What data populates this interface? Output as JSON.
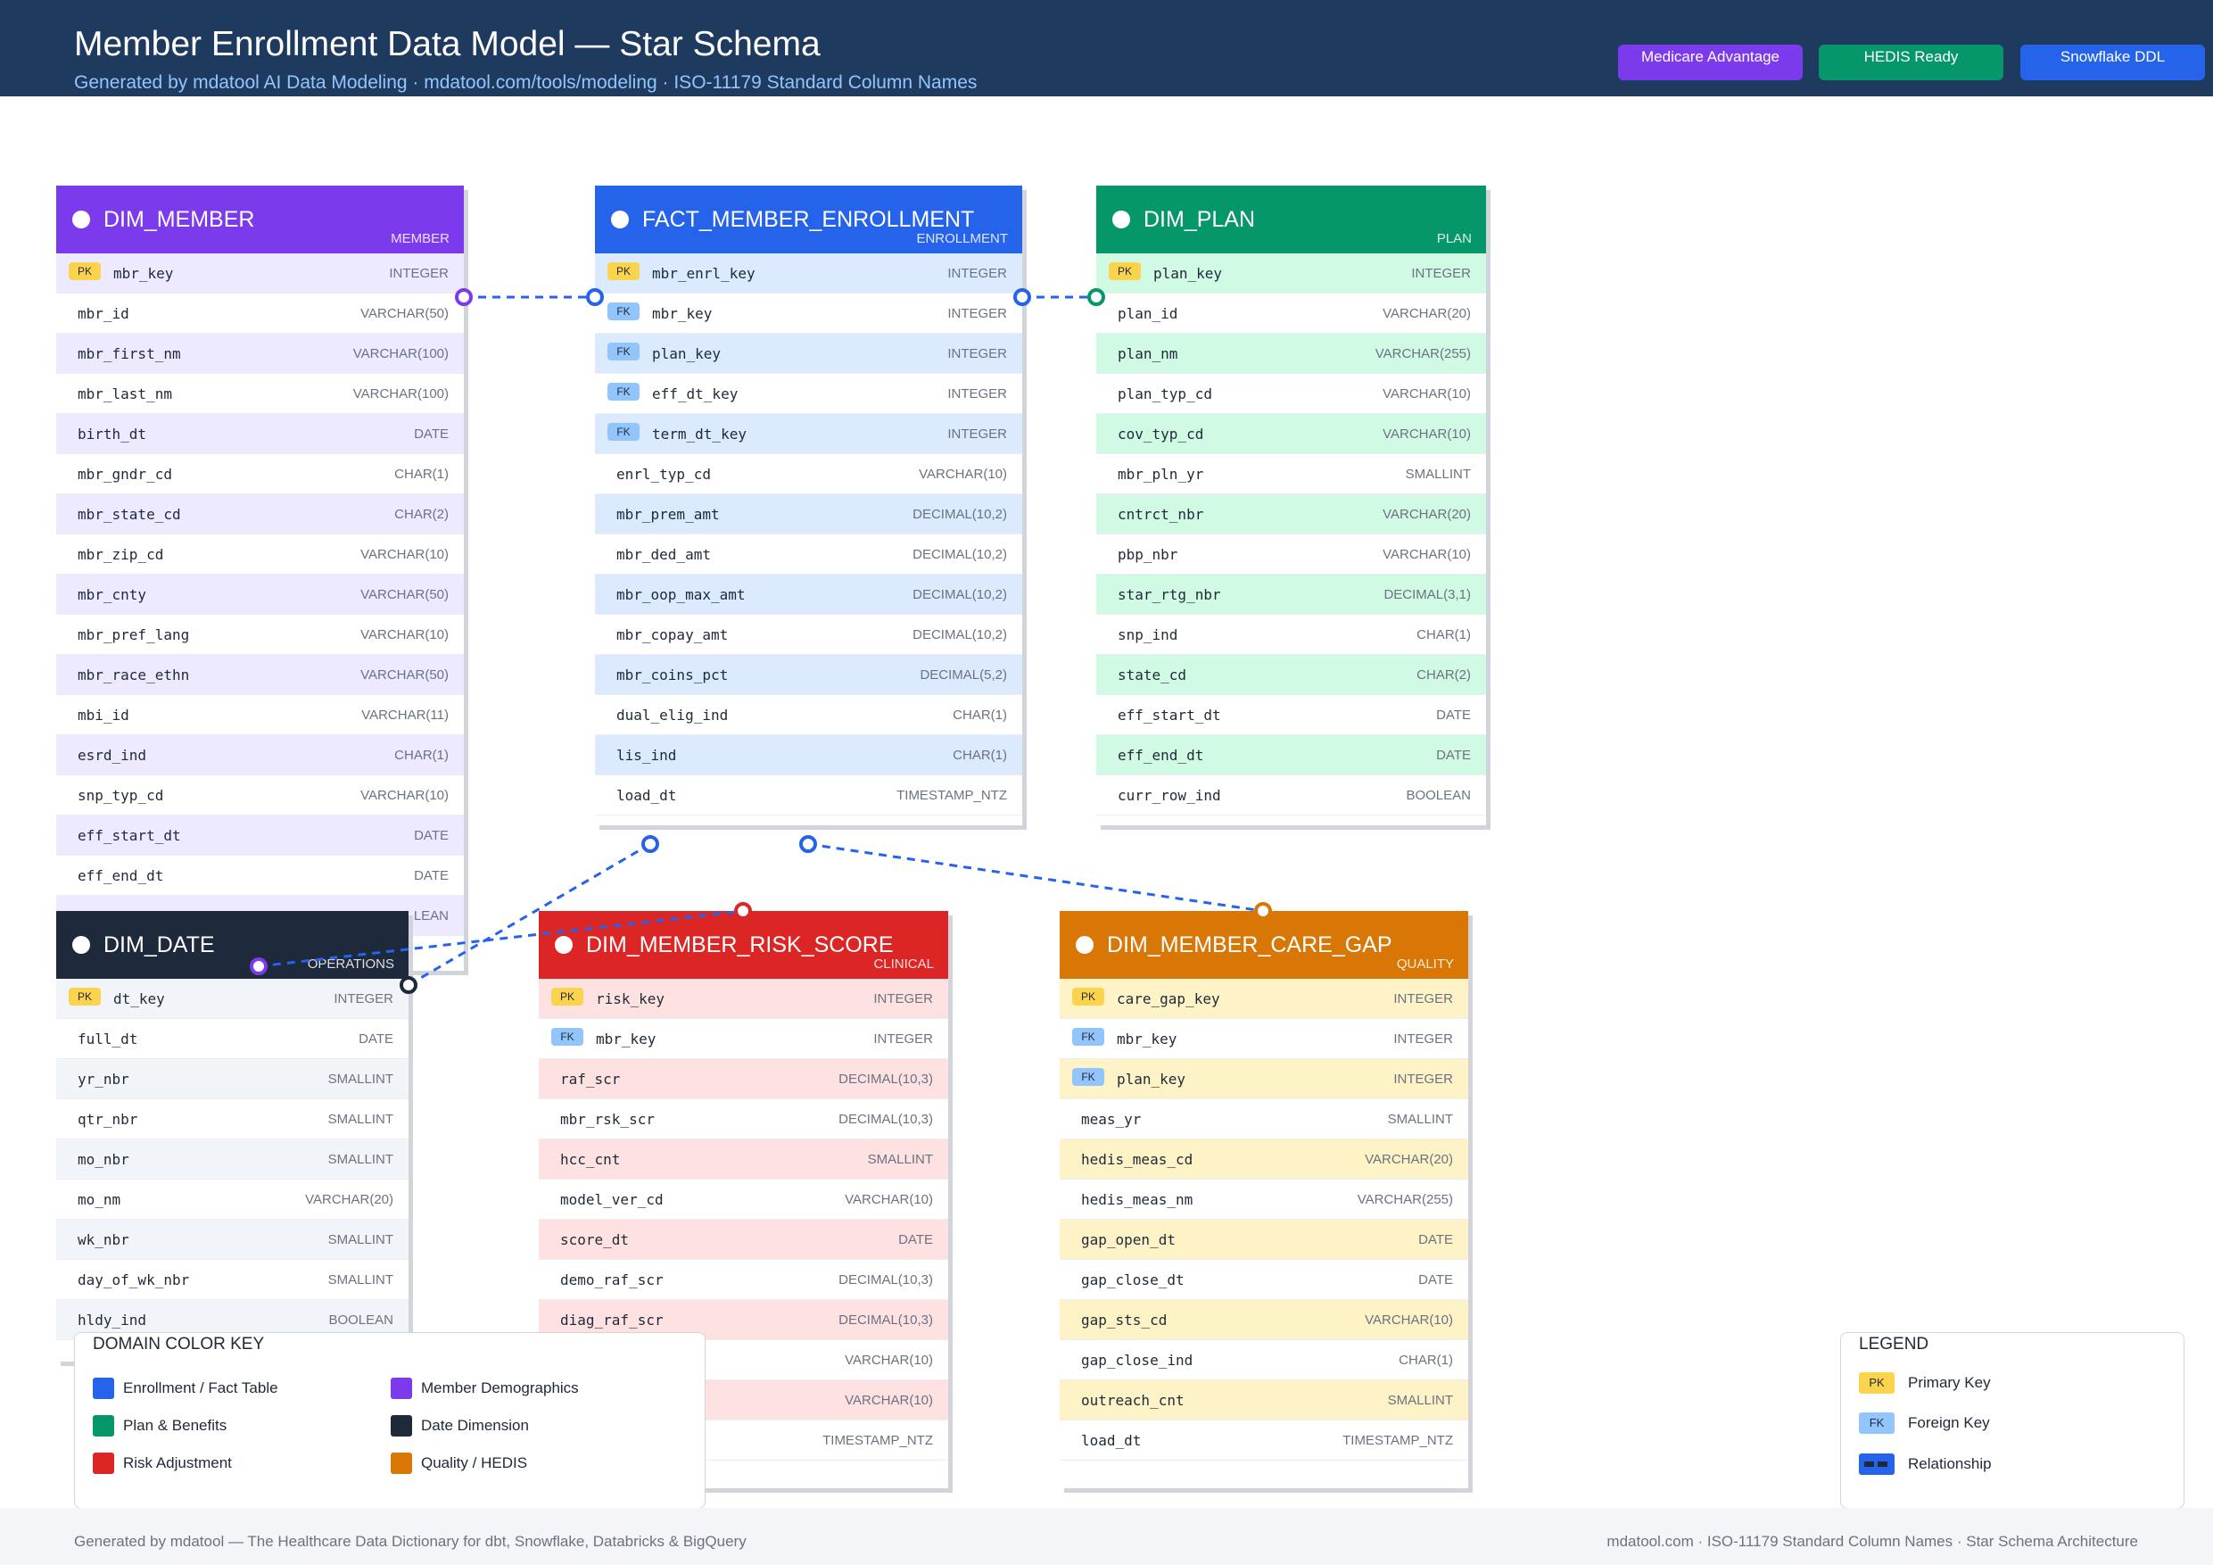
{
  "header": {
    "title": "Member Enrollment Data Model — Star Schema",
    "subtitle": "Generated by mdatool AI Data Modeling  ·  mdatool.com/tools/modeling  ·  ISO-11179 Standard Column Names",
    "badges": [
      {
        "label": "Medicare Advantage",
        "color": "#7c3aed"
      },
      {
        "label": "HEDIS Ready",
        "color": "#059669"
      },
      {
        "label": "Snowflake DDL",
        "color": "#2563eb"
      }
    ]
  },
  "tables": [
    {
      "id": "dim_member",
      "name": "DIM_MEMBER",
      "domain": "MEMBER",
      "color": "#7c3aed",
      "stripe": "#ede9fe",
      "columns": [
        {
          "key": "PK",
          "name": "mbr_key",
          "type": "INTEGER"
        },
        {
          "key": "",
          "name": "mbr_id",
          "type": "VARCHAR(50)"
        },
        {
          "key": "",
          "name": "mbr_first_nm",
          "type": "VARCHAR(100)"
        },
        {
          "key": "",
          "name": "mbr_last_nm",
          "type": "VARCHAR(100)"
        },
        {
          "key": "",
          "name": "birth_dt",
          "type": "DATE"
        },
        {
          "key": "",
          "name": "mbr_gndr_cd",
          "type": "CHAR(1)"
        },
        {
          "key": "",
          "name": "mbr_state_cd",
          "type": "CHAR(2)"
        },
        {
          "key": "",
          "name": "mbr_zip_cd",
          "type": "VARCHAR(10)"
        },
        {
          "key": "",
          "name": "mbr_cnty",
          "type": "VARCHAR(50)"
        },
        {
          "key": "",
          "name": "mbr_pref_lang",
          "type": "VARCHAR(10)"
        },
        {
          "key": "",
          "name": "mbr_race_ethn",
          "type": "VARCHAR(50)"
        },
        {
          "key": "",
          "name": "mbi_id",
          "type": "VARCHAR(11)"
        },
        {
          "key": "",
          "name": "esrd_ind",
          "type": "CHAR(1)"
        },
        {
          "key": "",
          "name": "snp_typ_cd",
          "type": "VARCHAR(10)"
        },
        {
          "key": "",
          "name": "eff_start_dt",
          "type": "DATE"
        },
        {
          "key": "",
          "name": "eff_end_dt",
          "type": "DATE"
        },
        {
          "key": "",
          "name": "",
          "type": "LEAN"
        }
      ]
    },
    {
      "id": "fact_enrollment",
      "name": "FACT_MEMBER_ENROLLMENT",
      "domain": "ENROLLMENT",
      "color": "#2563eb",
      "stripe": "#dbeafe",
      "columns": [
        {
          "key": "PK",
          "name": "mbr_enrl_key",
          "type": "INTEGER"
        },
        {
          "key": "FK",
          "name": "mbr_key",
          "type": "INTEGER"
        },
        {
          "key": "FK",
          "name": "plan_key",
          "type": "INTEGER"
        },
        {
          "key": "FK",
          "name": "eff_dt_key",
          "type": "INTEGER"
        },
        {
          "key": "FK",
          "name": "term_dt_key",
          "type": "INTEGER"
        },
        {
          "key": "",
          "name": "enrl_typ_cd",
          "type": "VARCHAR(10)"
        },
        {
          "key": "",
          "name": "mbr_prem_amt",
          "type": "DECIMAL(10,2)"
        },
        {
          "key": "",
          "name": "mbr_ded_amt",
          "type": "DECIMAL(10,2)"
        },
        {
          "key": "",
          "name": "mbr_oop_max_amt",
          "type": "DECIMAL(10,2)"
        },
        {
          "key": "",
          "name": "mbr_copay_amt",
          "type": "DECIMAL(10,2)"
        },
        {
          "key": "",
          "name": "mbr_coins_pct",
          "type": "DECIMAL(5,2)"
        },
        {
          "key": "",
          "name": "dual_elig_ind",
          "type": "CHAR(1)"
        },
        {
          "key": "",
          "name": "lis_ind",
          "type": "CHAR(1)"
        },
        {
          "key": "",
          "name": "load_dt",
          "type": "TIMESTAMP_NTZ"
        }
      ]
    },
    {
      "id": "dim_plan",
      "name": "DIM_PLAN",
      "domain": "PLAN",
      "color": "#059669",
      "stripe": "#d1fae5",
      "columns": [
        {
          "key": "PK",
          "name": "plan_key",
          "type": "INTEGER"
        },
        {
          "key": "",
          "name": "plan_id",
          "type": "VARCHAR(20)"
        },
        {
          "key": "",
          "name": "plan_nm",
          "type": "VARCHAR(255)"
        },
        {
          "key": "",
          "name": "plan_typ_cd",
          "type": "VARCHAR(10)"
        },
        {
          "key": "",
          "name": "cov_typ_cd",
          "type": "VARCHAR(10)"
        },
        {
          "key": "",
          "name": "mbr_pln_yr",
          "type": "SMALLINT"
        },
        {
          "key": "",
          "name": "cntrct_nbr",
          "type": "VARCHAR(20)"
        },
        {
          "key": "",
          "name": "pbp_nbr",
          "type": "VARCHAR(10)"
        },
        {
          "key": "",
          "name": "star_rtg_nbr",
          "type": "DECIMAL(3,1)"
        },
        {
          "key": "",
          "name": "snp_ind",
          "type": "CHAR(1)"
        },
        {
          "key": "",
          "name": "state_cd",
          "type": "CHAR(2)"
        },
        {
          "key": "",
          "name": "eff_start_dt",
          "type": "DATE"
        },
        {
          "key": "",
          "name": "eff_end_dt",
          "type": "DATE"
        },
        {
          "key": "",
          "name": "curr_row_ind",
          "type": "BOOLEAN"
        }
      ]
    },
    {
      "id": "dim_date",
      "name": "DIM_DATE",
      "domain": "OPERATIONS",
      "color": "#1e293b",
      "stripe": "#f1f5f9",
      "columns": [
        {
          "key": "PK",
          "name": "dt_key",
          "type": "INTEGER"
        },
        {
          "key": "",
          "name": "full_dt",
          "type": "DATE"
        },
        {
          "key": "",
          "name": "yr_nbr",
          "type": "SMALLINT"
        },
        {
          "key": "",
          "name": "qtr_nbr",
          "type": "SMALLINT"
        },
        {
          "key": "",
          "name": "mo_nbr",
          "type": "SMALLINT"
        },
        {
          "key": "",
          "name": "mo_nm",
          "type": "VARCHAR(20)"
        },
        {
          "key": "",
          "name": "wk_nbr",
          "type": "SMALLINT"
        },
        {
          "key": "",
          "name": "day_of_wk_nbr",
          "type": "SMALLINT"
        },
        {
          "key": "",
          "name": "hldy_ind",
          "type": "BOOLEAN"
        }
      ]
    },
    {
      "id": "dim_risk",
      "name": "DIM_MEMBER_RISK_SCORE",
      "domain": "CLINICAL",
      "color": "#dc2626",
      "stripe": "#fee2e2",
      "columns": [
        {
          "key": "PK",
          "name": "risk_key",
          "type": "INTEGER"
        },
        {
          "key": "FK",
          "name": "mbr_key",
          "type": "INTEGER"
        },
        {
          "key": "",
          "name": "raf_scr",
          "type": "DECIMAL(10,3)"
        },
        {
          "key": "",
          "name": "mbr_rsk_scr",
          "type": "DECIMAL(10,3)"
        },
        {
          "key": "",
          "name": "hcc_cnt",
          "type": "SMALLINT"
        },
        {
          "key": "",
          "name": "model_ver_cd",
          "type": "VARCHAR(10)"
        },
        {
          "key": "",
          "name": "score_dt",
          "type": "DATE"
        },
        {
          "key": "",
          "name": "demo_raf_scr",
          "type": "DECIMAL(10,3)"
        },
        {
          "key": "",
          "name": "diag_raf_scr",
          "type": "DECIMAL(10,3)"
        },
        {
          "key": "",
          "name": "",
          "type": "VARCHAR(10)"
        },
        {
          "key": "",
          "name": "",
          "type": "VARCHAR(10)"
        },
        {
          "key": "",
          "name": "",
          "type": "TIMESTAMP_NTZ"
        }
      ]
    },
    {
      "id": "dim_care_gap",
      "name": "DIM_MEMBER_CARE_GAP",
      "domain": "QUALITY",
      "color": "#d97706",
      "stripe": "#fef3c7",
      "columns": [
        {
          "key": "PK",
          "name": "care_gap_key",
          "type": "INTEGER"
        },
        {
          "key": "FK",
          "name": "mbr_key",
          "type": "INTEGER"
        },
        {
          "key": "FK",
          "name": "plan_key",
          "type": "INTEGER"
        },
        {
          "key": "",
          "name": "meas_yr",
          "type": "SMALLINT"
        },
        {
          "key": "",
          "name": "hedis_meas_cd",
          "type": "VARCHAR(20)"
        },
        {
          "key": "",
          "name": "hedis_meas_nm",
          "type": "VARCHAR(255)"
        },
        {
          "key": "",
          "name": "gap_open_dt",
          "type": "DATE"
        },
        {
          "key": "",
          "name": "gap_close_dt",
          "type": "DATE"
        },
        {
          "key": "",
          "name": "gap_sts_cd",
          "type": "VARCHAR(10)"
        },
        {
          "key": "",
          "name": "gap_close_ind",
          "type": "CHAR(1)"
        },
        {
          "key": "",
          "name": "outreach_cnt",
          "type": "SMALLINT"
        },
        {
          "key": "",
          "name": "load_dt",
          "type": "TIMESTAMP_NTZ"
        }
      ]
    }
  ],
  "domain_key": {
    "title": "DOMAIN COLOR KEY",
    "items": [
      {
        "label": "Enrollment / Fact Table",
        "color": "#2563eb"
      },
      {
        "label": "Member Demographics",
        "color": "#7c3aed"
      },
      {
        "label": "Plan & Benefits",
        "color": "#059669"
      },
      {
        "label": "Date Dimension",
        "color": "#1e293b"
      },
      {
        "label": "Risk Adjustment",
        "color": "#dc2626"
      },
      {
        "label": "Quality / HEDIS",
        "color": "#d97706"
      }
    ]
  },
  "legend": {
    "title": "LEGEND",
    "items": [
      {
        "badge": "PK",
        "label": "Primary Key",
        "color": "#fcd34d"
      },
      {
        "badge": "FK",
        "label": "Foreign Key",
        "color": "#93c5fd"
      },
      {
        "badge": "",
        "label": "Relationship",
        "color": "#2563eb"
      }
    ]
  },
  "footer": {
    "left": "Generated by mdatool — The Healthcare Data Dictionary for dbt, Snowflake, Databricks & BigQuery",
    "right": "mdatool.com  ·  ISO-11179 Standard Column Names  ·  Star Schema Architecture"
  }
}
